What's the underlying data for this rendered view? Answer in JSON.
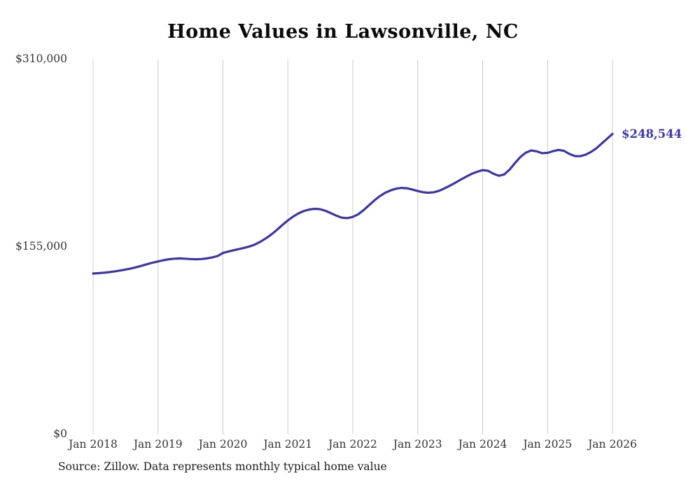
{
  "chart": {
    "title": "Home Values in Lawsonville, NC",
    "y_ticks": [
      "$310,000",
      "$155,000",
      "$0"
    ],
    "x_ticks": [
      "Jan 2018",
      "Jan 2019",
      "Jan 2020",
      "Jan 2021",
      "Jan 2022",
      "Jan 2023",
      "Jan 2024",
      "Jan 2025",
      "Jan 2026"
    ],
    "end_label": "$248,544",
    "source": "Source: Zillow. Data represents monthly typical home value",
    "colors": {
      "line": "#3a35ae",
      "grid": "#cccccc",
      "text": "#333333",
      "title": "#0b0b0b"
    }
  },
  "chart_data": {
    "type": "line",
    "title": "Home Values in Lawsonville, NC",
    "xlabel": "",
    "ylabel": "",
    "unit": "USD",
    "ylim": [
      0,
      310000
    ],
    "x_start": "2018-01",
    "x_interval": "monthly",
    "x_tick_labels": [
      "Jan 2018",
      "Jan 2019",
      "Jan 2020",
      "Jan 2021",
      "Jan 2022",
      "Jan 2023",
      "Jan 2024",
      "Jan 2025",
      "Jan 2026"
    ],
    "final_value": 248544,
    "final_value_label": "$248,544",
    "legend": [],
    "grid": "vertical-only",
    "values": [
      133000,
      133300,
      133700,
      134200,
      134800,
      135500,
      136300,
      137200,
      138300,
      139500,
      140800,
      142000,
      143000,
      144000,
      144800,
      145300,
      145500,
      145300,
      145000,
      144800,
      145000,
      145500,
      146300,
      147500,
      150000,
      151200,
      152300,
      153300,
      154300,
      155500,
      157200,
      159500,
      162300,
      165500,
      169200,
      173200,
      177000,
      180200,
      182800,
      184800,
      186000,
      186500,
      186200,
      184800,
      182800,
      180800,
      179200,
      178800,
      179800,
      182000,
      185500,
      189500,
      193500,
      197000,
      199800,
      201800,
      203200,
      203800,
      203500,
      202500,
      201200,
      200200,
      199800,
      200200,
      201500,
      203500,
      205800,
      208200,
      210800,
      213200,
      215500,
      217200,
      218500,
      218000,
      215500,
      213800,
      215000,
      219000,
      224500,
      229500,
      233000,
      234800,
      234000,
      232500,
      232800,
      234200,
      235200,
      234500,
      232000,
      230200,
      230000,
      231200,
      233500,
      236500,
      240500,
      244500,
      248544
    ]
  }
}
